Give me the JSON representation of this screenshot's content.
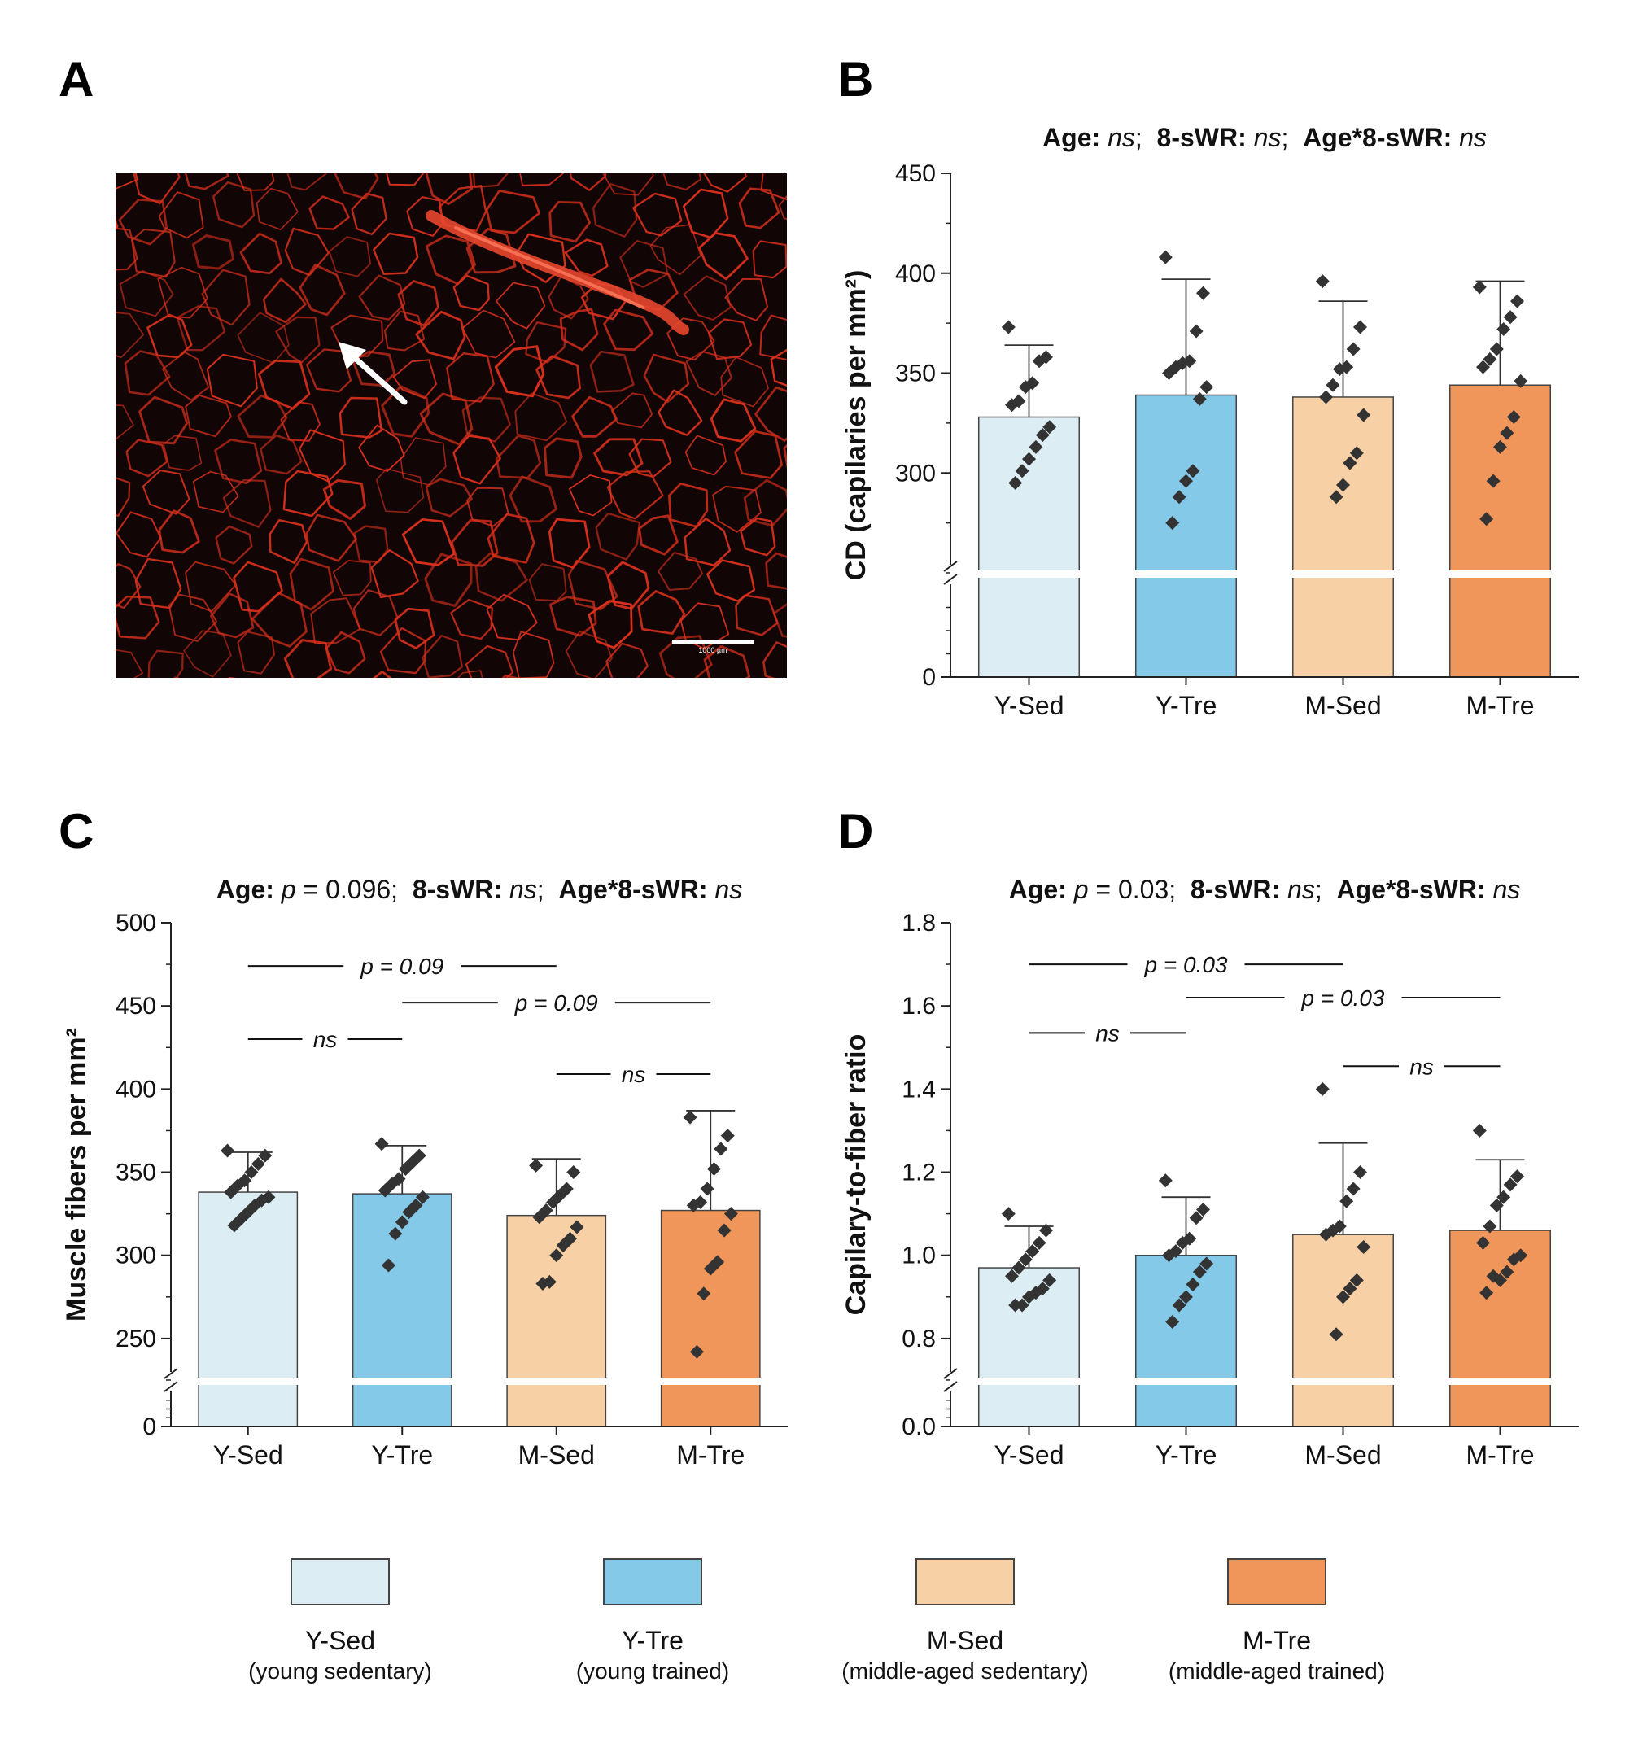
{
  "colors": {
    "Y-Sed": "#dcedf4",
    "Y-Tre": "#84c9e8",
    "M-Sed": "#f8d0a6",
    "M-Tre": "#f1965a",
    "micro_background": "#120505",
    "micro_stain": "#d8301c"
  },
  "panel_a": {
    "letter": "A",
    "scale_bar_label": "1000 µm",
    "arrow_icon": "arrow-up-left-icon"
  },
  "legend": [
    {
      "code": "Y-Sed",
      "desc": "(young sedentary)"
    },
    {
      "code": "Y-Tre",
      "desc": "(young trained)"
    },
    {
      "code": "M-Sed",
      "desc": "(middle-aged sedentary)"
    },
    {
      "code": "M-Tre",
      "desc": "(middle-aged trained)"
    }
  ],
  "chart_data": [
    {
      "panel": "B",
      "type": "bar",
      "title_parts": [
        {
          "text": "Age:",
          "b": true
        },
        {
          "text": " ns",
          "i": true
        },
        {
          "text": ";  "
        },
        {
          "text": "8-sWR:",
          "b": true
        },
        {
          "text": " ns",
          "i": true
        },
        {
          "text": ";  "
        },
        {
          "text": "Age*8-sWR:",
          "b": true
        },
        {
          "text": " ns",
          "i": true
        }
      ],
      "ylabel": "CD (capilaries per mm²)",
      "ylim": [
        250,
        450
      ],
      "yticks": [
        300,
        350,
        400,
        450
      ],
      "ytick_labels": [
        "300",
        "350",
        "400",
        "450"
      ],
      "minor_step": 25,
      "lower_segment": {
        "ticks": [
          0
        ],
        "labels": [
          "0"
        ]
      },
      "categories": [
        "Y-Sed",
        "Y-Tre",
        "M-Sed",
        "M-Tre"
      ],
      "values": [
        328,
        339,
        338,
        344
      ],
      "error_upper": [
        364,
        397,
        386,
        396
      ],
      "points": [
        [
          373,
          358,
          356,
          345,
          343,
          336,
          334,
          323,
          319,
          313,
          307,
          301,
          295
        ],
        [
          408,
          390,
          371,
          356,
          355,
          353,
          350,
          343,
          337,
          301,
          296,
          288,
          275
        ],
        [
          396,
          373,
          362,
          353,
          352,
          344,
          338,
          329,
          310,
          305,
          294,
          288
        ],
        [
          393,
          386,
          378,
          372,
          362,
          357,
          353,
          346,
          328,
          320,
          313,
          296,
          277
        ]
      ],
      "comparisons": []
    },
    {
      "panel": "C",
      "type": "bar",
      "title_parts": [
        {
          "text": "Age:",
          "b": true
        },
        {
          "text": " "
        },
        {
          "text": "p",
          "i": true
        },
        {
          "text": " = 0.096;  "
        },
        {
          "text": "8-sWR:",
          "b": true
        },
        {
          "text": " ns",
          "i": true
        },
        {
          "text": ";  "
        },
        {
          "text": "Age*8-sWR:",
          "b": true
        },
        {
          "text": " ns",
          "i": true
        }
      ],
      "ylabel": "Muscle fibers per mm²",
      "ylim": [
        225,
        500
      ],
      "yticks": [
        250,
        300,
        350,
        400,
        450,
        500
      ],
      "ytick_labels": [
        "250",
        "300",
        "350",
        "400",
        "450",
        "500"
      ],
      "minor_step": 25,
      "lower_segment": {
        "ticks": [
          0
        ],
        "labels": [
          "0"
        ]
      },
      "categories": [
        "Y-Sed",
        "Y-Tre",
        "M-Sed",
        "M-Tre"
      ],
      "values": [
        338,
        337,
        324,
        327
      ],
      "error_upper": [
        362,
        366,
        358,
        387
      ],
      "points": [
        [
          363,
          360,
          355,
          350,
          345,
          342,
          338,
          335,
          333,
          330,
          326,
          322,
          318
        ],
        [
          367,
          360,
          356,
          352,
          346,
          343,
          339,
          335,
          330,
          326,
          320,
          313,
          294
        ],
        [
          354,
          350,
          340,
          336,
          332,
          327,
          323,
          317,
          310,
          306,
          300,
          284,
          283
        ],
        [
          383,
          372,
          364,
          352,
          340,
          332,
          330,
          325,
          315,
          296,
          292,
          277,
          242
        ]
      ],
      "comparisons": [
        {
          "from": 0,
          "to": 1,
          "label": "ns",
          "value": 430
        },
        {
          "from": 0,
          "to": 2,
          "label": "p = 0.09",
          "value": 474
        },
        {
          "from": 1,
          "to": 3,
          "label": "p = 0.09",
          "value": 452
        },
        {
          "from": 2,
          "to": 3,
          "label": "ns",
          "value": 409
        }
      ]
    },
    {
      "panel": "D",
      "type": "bar",
      "title_parts": [
        {
          "text": "Age:",
          "b": true
        },
        {
          "text": " "
        },
        {
          "text": "p",
          "i": true
        },
        {
          "text": " = 0.03;  "
        },
        {
          "text": "8-sWR:",
          "b": true
        },
        {
          "text": " ns",
          "i": true
        },
        {
          "text": ";  "
        },
        {
          "text": "Age*8-sWR:",
          "b": true
        },
        {
          "text": " ns",
          "i": true
        }
      ],
      "ylabel": "Capilary-to-fiber ratio",
      "ylim": [
        0.7,
        1.8
      ],
      "yticks": [
        0.8,
        1.0,
        1.2,
        1.4,
        1.6,
        1.8
      ],
      "ytick_labels": [
        "0.8",
        "1.0",
        "1.2",
        "1.4",
        "1.6",
        "1.8"
      ],
      "minor_step": 0.1,
      "lower_segment": {
        "ticks": [
          0
        ],
        "labels": [
          "0.0"
        ]
      },
      "categories": [
        "Y-Sed",
        "Y-Tre",
        "M-Sed",
        "M-Tre"
      ],
      "values": [
        0.97,
        1.0,
        1.05,
        1.06
      ],
      "error_upper": [
        1.07,
        1.14,
        1.27,
        1.23
      ],
      "points": [
        [
          1.1,
          1.06,
          1.03,
          1.01,
          0.99,
          0.97,
          0.95,
          0.94,
          0.92,
          0.91,
          0.9,
          0.88,
          0.88
        ],
        [
          1.18,
          1.11,
          1.09,
          1.04,
          1.03,
          1.01,
          1.0,
          0.98,
          0.96,
          0.93,
          0.9,
          0.88,
          0.84
        ],
        [
          1.4,
          1.2,
          1.16,
          1.13,
          1.07,
          1.06,
          1.05,
          1.02,
          0.94,
          0.92,
          0.9,
          0.81
        ],
        [
          1.3,
          1.19,
          1.17,
          1.14,
          1.12,
          1.07,
          1.03,
          1.0,
          0.99,
          0.96,
          0.94,
          0.95,
          0.91
        ]
      ],
      "comparisons": [
        {
          "from": 0,
          "to": 1,
          "label": "ns",
          "value": 1.535
        },
        {
          "from": 0,
          "to": 2,
          "label": "p = 0.03",
          "value": 1.7
        },
        {
          "from": 1,
          "to": 3,
          "label": "p = 0.03",
          "value": 1.62
        },
        {
          "from": 2,
          "to": 3,
          "label": "ns",
          "value": 1.455
        }
      ]
    }
  ]
}
